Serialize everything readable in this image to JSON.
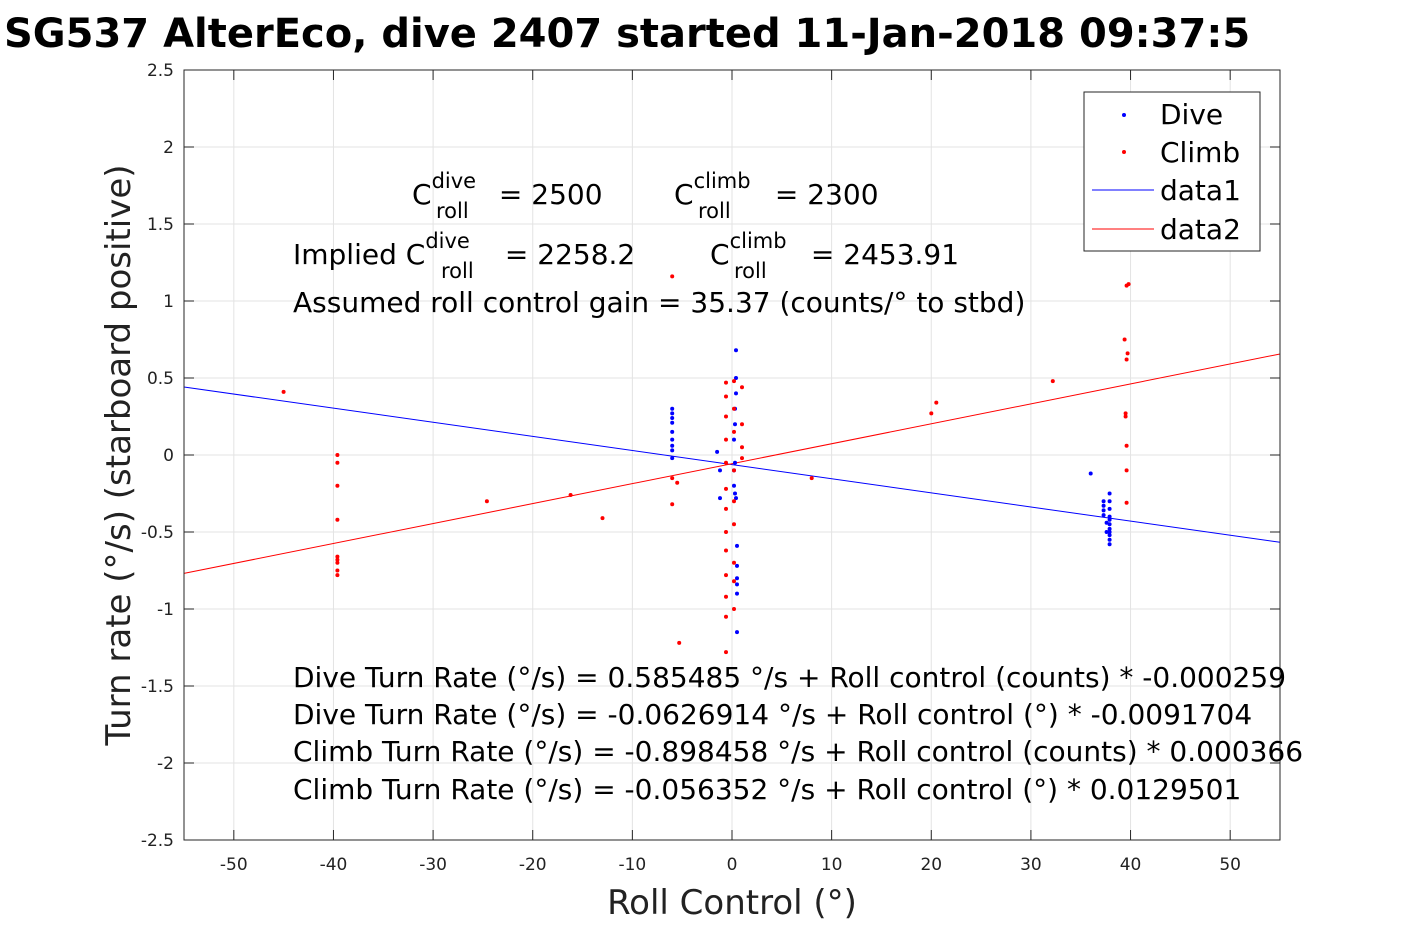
{
  "chart_data": {
    "type": "scatter",
    "title": "SG537 AlterEco, dive 2407 started 11-Jan-2018 09:37:5",
    "xlabel": "Roll Control (°)",
    "ylabel": "Turn rate (°/s) (starboard positive)",
    "xlim": [
      -55,
      55
    ],
    "ylim": [
      -2.5,
      2.5
    ],
    "xticks": [
      -50,
      -40,
      -30,
      -20,
      -10,
      0,
      10,
      20,
      30,
      40,
      50
    ],
    "yticks": [
      -2.5,
      -2,
      -1.5,
      -1,
      -0.5,
      0,
      0.5,
      1,
      1.5,
      2,
      2.5
    ],
    "grid": true,
    "legend_position": "top-right",
    "series": [
      {
        "name": "Dive",
        "kind": "points",
        "color": "#0000ff",
        "points": [
          [
            -6,
            0.3
          ],
          [
            -6,
            0.27
          ],
          [
            -6,
            0.24
          ],
          [
            -6,
            0.21
          ],
          [
            -6,
            0.15
          ],
          [
            -6,
            0.1
          ],
          [
            -6,
            0.06
          ],
          [
            -6,
            0.03
          ],
          [
            -6,
            -0.02
          ],
          [
            -1.5,
            0.02
          ],
          [
            -1.2,
            -0.1
          ],
          [
            -1.2,
            -0.28
          ],
          [
            0.4,
            0.68
          ],
          [
            0.4,
            0.5
          ],
          [
            0.4,
            0.4
          ],
          [
            0.3,
            0.3
          ],
          [
            0.3,
            0.2
          ],
          [
            0.2,
            0.1
          ],
          [
            0.3,
            -0.05
          ],
          [
            0.2,
            -0.1
          ],
          [
            0.2,
            -0.2
          ],
          [
            0.3,
            -0.25
          ],
          [
            0.4,
            -0.28
          ],
          [
            0.5,
            -0.59
          ],
          [
            0.5,
            -0.72
          ],
          [
            0.5,
            -0.8
          ],
          [
            0.5,
            -0.84
          ],
          [
            0.5,
            -0.9
          ],
          [
            0.5,
            -1.15
          ],
          [
            36,
            -0.12
          ],
          [
            37.3,
            -0.3
          ],
          [
            37.3,
            -0.33
          ],
          [
            37.3,
            -0.36
          ],
          [
            37.3,
            -0.39
          ],
          [
            37.9,
            -0.25
          ],
          [
            37.9,
            -0.3
          ],
          [
            37.9,
            -0.35
          ],
          [
            37.9,
            -0.4
          ],
          [
            37.9,
            -0.42
          ],
          [
            37.9,
            -0.45
          ],
          [
            37.9,
            -0.48
          ],
          [
            37.9,
            -0.5
          ],
          [
            37.9,
            -0.52
          ],
          [
            37.9,
            -0.55
          ],
          [
            37.9,
            -0.58
          ],
          [
            37.6,
            -0.44
          ],
          [
            37.6,
            -0.5
          ]
        ]
      },
      {
        "name": "Climb",
        "kind": "points",
        "color": "#ff0000",
        "points": [
          [
            -45,
            0.41
          ],
          [
            -39.6,
            0.0
          ],
          [
            -39.6,
            -0.05
          ],
          [
            -39.6,
            -0.2
          ],
          [
            -39.6,
            -0.42
          ],
          [
            -39.6,
            -0.66
          ],
          [
            -39.6,
            -0.68
          ],
          [
            -39.6,
            -0.7
          ],
          [
            -39.6,
            -0.75
          ],
          [
            -39.6,
            -0.78
          ],
          [
            -24.6,
            -0.3
          ],
          [
            -16.2,
            -0.26
          ],
          [
            -13,
            -0.41
          ],
          [
            -6,
            1.16
          ],
          [
            -6,
            -0.15
          ],
          [
            -6,
            -0.32
          ],
          [
            -5.5,
            -0.18
          ],
          [
            -5.3,
            -1.22
          ],
          [
            -0.6,
            0.47
          ],
          [
            -0.6,
            0.38
          ],
          [
            -0.6,
            0.25
          ],
          [
            -0.6,
            0.1
          ],
          [
            -0.6,
            -0.05
          ],
          [
            -0.6,
            -0.22
          ],
          [
            -0.6,
            -0.35
          ],
          [
            -0.6,
            -0.5
          ],
          [
            -0.6,
            -0.62
          ],
          [
            -0.6,
            -0.78
          ],
          [
            -0.6,
            -0.92
          ],
          [
            -0.6,
            -1.05
          ],
          [
            -0.6,
            -1.28
          ],
          [
            0.2,
            0.48
          ],
          [
            0.2,
            0.3
          ],
          [
            0.2,
            0.15
          ],
          [
            0.2,
            -0.1
          ],
          [
            0.2,
            -0.3
          ],
          [
            0.2,
            -0.45
          ],
          [
            0.2,
            -0.7
          ],
          [
            0.2,
            -0.82
          ],
          [
            0.2,
            -1.0
          ],
          [
            1.0,
            0.44
          ],
          [
            1.0,
            0.2
          ],
          [
            1.0,
            0.05
          ],
          [
            1.0,
            -0.02
          ],
          [
            8,
            -0.15
          ],
          [
            20,
            0.27
          ],
          [
            20.5,
            0.34
          ],
          [
            32.2,
            0.48
          ],
          [
            39.6,
            1.1
          ],
          [
            39.8,
            1.11
          ],
          [
            39.4,
            0.75
          ],
          [
            39.7,
            0.66
          ],
          [
            39.6,
            0.62
          ],
          [
            39.5,
            0.27
          ],
          [
            39.5,
            0.25
          ],
          [
            39.6,
            0.06
          ],
          [
            39.6,
            -0.1
          ],
          [
            39.6,
            -0.31
          ]
        ]
      },
      {
        "name": "data1",
        "kind": "line",
        "color": "#0000ff",
        "points": [
          [
            -55,
            0.4417
          ],
          [
            55,
            -0.5671
          ]
        ]
      },
      {
        "name": "data2",
        "kind": "line",
        "color": "#ff0000",
        "points": [
          [
            -55,
            -0.7686
          ],
          [
            55,
            0.6559
          ]
        ]
      }
    ],
    "annotations": {
      "c_dive": {
        "prefix": "C",
        "sup": "dive",
        "sub": "roll",
        "value": " = 2500"
      },
      "c_climb": {
        "prefix": "C",
        "sup": "climb",
        "sub": "roll",
        "value": " = 2300"
      },
      "implied_prefix": "Implied ",
      "implied_dive": {
        "prefix": "C",
        "sup": "dive",
        "sub": "roll",
        "value": " = 2258.2"
      },
      "implied_climb": {
        "prefix": "C",
        "sup": "climb",
        "sub": "roll",
        "value": " = 2453.91"
      },
      "gain_line": "Assumed roll control gain = 35.37 (counts/° to stbd)",
      "fit_lines": [
        "Dive Turn Rate (°/s) = 0.585485 °/s + Roll control (counts) * -0.000259",
        "Dive Turn Rate (°/s) = -0.0626914 °/s + Roll control (°) * -0.0091704",
        "Climb Turn Rate (°/s) = -0.898458 °/s + Roll control (counts) * 0.000366",
        "Climb Turn Rate (°/s) = -0.056352 °/s + Roll control (°) * 0.0129501"
      ]
    }
  }
}
